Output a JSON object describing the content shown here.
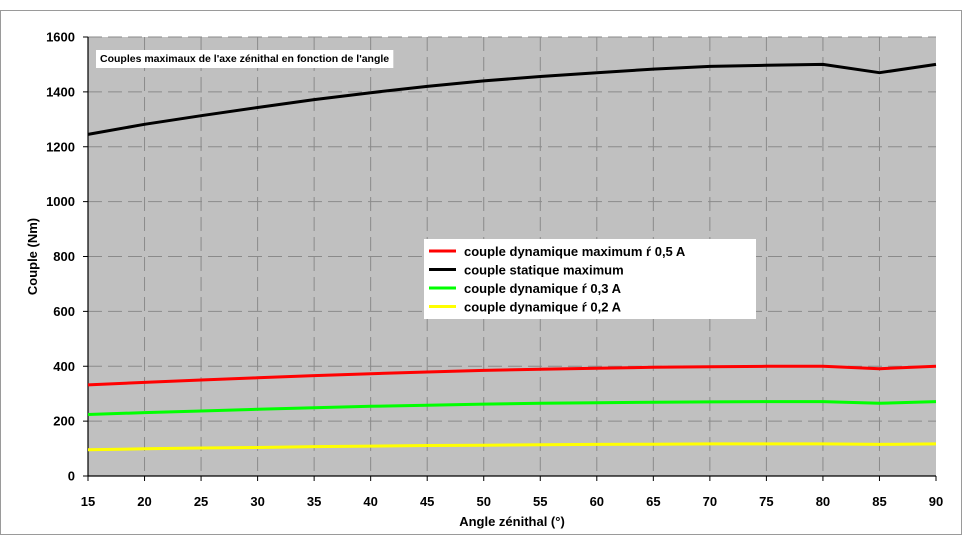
{
  "chart_data": {
    "type": "line",
    "title": "Couples maximaux de l'axe zénithal en fonction de l'angle",
    "xlabel": "Angle zénithal (°)",
    "ylabel": "Couple (Nm)",
    "xlim": [
      15,
      90
    ],
    "ylim": [
      0,
      1600
    ],
    "x": [
      15,
      20,
      25,
      30,
      35,
      40,
      45,
      50,
      55,
      60,
      65,
      70,
      75,
      80,
      85,
      90
    ],
    "xticks": [
      15,
      20,
      25,
      30,
      35,
      40,
      45,
      50,
      55,
      60,
      65,
      70,
      75,
      80,
      85,
      90
    ],
    "yticks": [
      0,
      200,
      400,
      600,
      800,
      1000,
      1200,
      1400,
      1600
    ],
    "grid": true,
    "legend_position": "center",
    "plot_background": "#c0c0c0",
    "series": [
      {
        "name": "couple dynamique maximum ŕ 0,5 A",
        "color": "#ff0000",
        "values": [
          332,
          341,
          350,
          358,
          366,
          373,
          379,
          385,
          389,
          393,
          396,
          398,
          400,
          400,
          391,
          400
        ]
      },
      {
        "name": "couple statique maximum",
        "color": "#000000",
        "values": [
          1245,
          1282,
          1313,
          1343,
          1372,
          1397,
          1420,
          1440,
          1456,
          1470,
          1483,
          1493,
          1497,
          1500,
          1470,
          1500
        ]
      },
      {
        "name": "couple dynamique ŕ 0,3 A",
        "color": "#00ff00",
        "values": [
          224,
          231,
          237,
          243,
          249,
          254,
          258,
          262,
          265,
          267,
          269,
          270,
          271,
          271,
          265,
          271
        ]
      },
      {
        "name": "couple dynamique ŕ 0,2 A",
        "color": "#ffff00",
        "values": [
          96,
          99,
          102,
          104,
          107,
          109,
          111,
          112,
          114,
          115,
          116,
          117,
          117,
          117,
          115,
          117
        ]
      }
    ]
  }
}
